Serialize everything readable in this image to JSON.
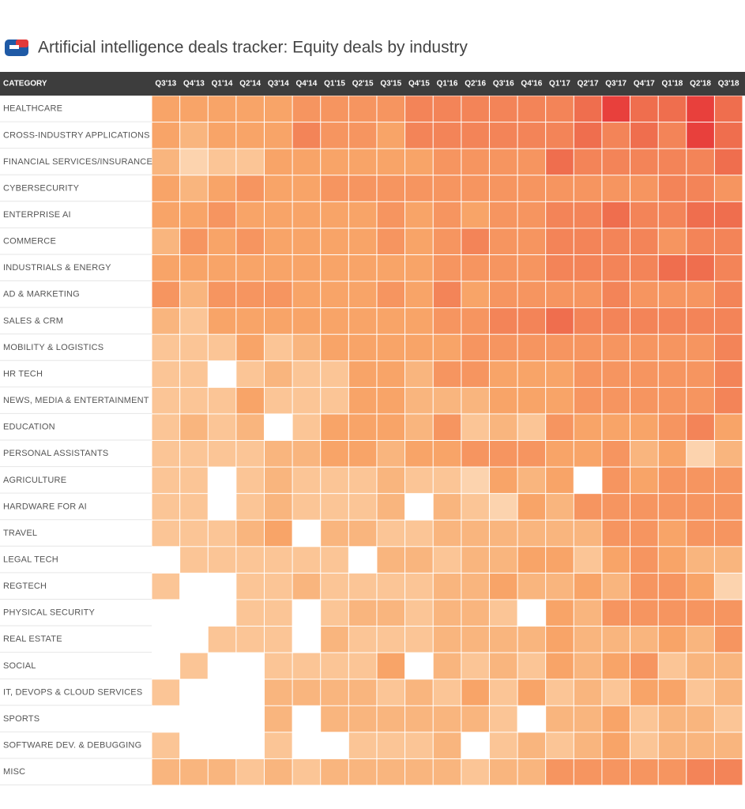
{
  "chart_data": {
    "type": "heatmap",
    "title": "Artificial intelligence deals tracker: Equity deals by industry",
    "row_header": "CATEGORY",
    "columns": [
      "Q3'13",
      "Q4'13",
      "Q1'14",
      "Q2'14",
      "Q3'14",
      "Q4'14",
      "Q1'15",
      "Q2'15",
      "Q3'15",
      "Q4'15",
      "Q1'16",
      "Q2'16",
      "Q3'16",
      "Q4'16",
      "Q1'17",
      "Q2'17",
      "Q3'17",
      "Q4'17",
      "Q1'18",
      "Q2'18",
      "Q3'18"
    ],
    "categories": [
      "HEALTHCARE",
      "CROSS-INDUSTRY APPLICATIONS",
      "FINANCIAL SERVICES/INSURANCE",
      "CYBERSECURITY",
      "ENTERPRISE AI",
      "COMMERCE",
      "INDUSTRIALS & ENERGY",
      "AD & MARKETING",
      "SALES & CRM",
      "MOBILITY & LOGISTICS",
      "HR TECH",
      "NEWS, MEDIA & ENTERTAINMENT",
      "EDUCATION",
      "PERSONAL ASSISTANTS",
      "AGRICULTURE",
      "HARDWARE FOR AI",
      "TRAVEL",
      "LEGAL TECH",
      "REGTECH",
      "PHYSICAL SECURITY",
      "REAL ESTATE",
      "SOCIAL",
      "IT, DEVOPS & CLOUD SERVICES",
      "SPORTS",
      "SOFTWARE DEV. & DEBUGGING",
      "MISC"
    ],
    "colors": [
      [
        "#f8a468",
        "#f8a468",
        "#f8a468",
        "#f8a468",
        "#f8a468",
        "#f69560",
        "#f69560",
        "#f69560",
        "#f69560",
        "#f38458",
        "#f38458",
        "#f38458",
        "#f38458",
        "#f38458",
        "#f38458",
        "#ef6e4e",
        "#e8403c",
        "#ef6e4e",
        "#ef6e4e",
        "#e8403c",
        "#ef6e4e"
      ],
      [
        "#f8a468",
        "#f9b57e",
        "#f8a468",
        "#f8a468",
        "#f8a468",
        "#f38458",
        "#f69560",
        "#f69560",
        "#f8a468",
        "#f38458",
        "#f38458",
        "#f38458",
        "#f38458",
        "#f38458",
        "#f38458",
        "#ef6e4e",
        "#f38458",
        "#ef6e4e",
        "#f38458",
        "#e8403c",
        "#ef6e4e"
      ],
      [
        "#f9b57e",
        "#fcd3ae",
        "#fbc596",
        "#fbc596",
        "#f8a468",
        "#f8a468",
        "#f8a468",
        "#f8a468",
        "#f8a468",
        "#f8a468",
        "#f69560",
        "#f69560",
        "#f69560",
        "#f69560",
        "#ef6e4e",
        "#f38458",
        "#f38458",
        "#f38458",
        "#f38458",
        "#f38458",
        "#ef6e4e"
      ],
      [
        "#f8a468",
        "#f9b57e",
        "#f8a468",
        "#f69560",
        "#f8a468",
        "#f8a468",
        "#f69560",
        "#f69560",
        "#f69560",
        "#f69560",
        "#f69560",
        "#f69560",
        "#f69560",
        "#f69560",
        "#f69560",
        "#f69560",
        "#f69560",
        "#f69560",
        "#f38458",
        "#f38458",
        "#f69560"
      ],
      [
        "#f8a468",
        "#f8a468",
        "#f69560",
        "#f8a468",
        "#f8a468",
        "#f8a468",
        "#f8a468",
        "#f8a468",
        "#f69560",
        "#f8a468",
        "#f69560",
        "#f8a468",
        "#f69560",
        "#f69560",
        "#f38458",
        "#f38458",
        "#ef6e4e",
        "#f38458",
        "#f38458",
        "#ef6e4e",
        "#ef6e4e"
      ],
      [
        "#f9b57e",
        "#f69560",
        "#f8a468",
        "#f69560",
        "#f8a468",
        "#f8a468",
        "#f8a468",
        "#f8a468",
        "#f69560",
        "#f8a468",
        "#f69560",
        "#f38458",
        "#f69560",
        "#f69560",
        "#f38458",
        "#f38458",
        "#f38458",
        "#f38458",
        "#f69560",
        "#f38458",
        "#f38458"
      ],
      [
        "#f8a468",
        "#f8a468",
        "#f8a468",
        "#f8a468",
        "#f8a468",
        "#f8a468",
        "#f8a468",
        "#f8a468",
        "#f8a468",
        "#f8a468",
        "#f69560",
        "#f69560",
        "#f69560",
        "#f69560",
        "#f38458",
        "#f38458",
        "#f38458",
        "#f38458",
        "#ef6e4e",
        "#ef6e4e",
        "#f38458"
      ],
      [
        "#f69560",
        "#f9b57e",
        "#f69560",
        "#f69560",
        "#f69560",
        "#f8a468",
        "#f8a468",
        "#f8a468",
        "#f69560",
        "#f8a468",
        "#f38458",
        "#f8a468",
        "#f69560",
        "#f69560",
        "#f69560",
        "#f69560",
        "#f38458",
        "#f69560",
        "#f69560",
        "#f69560",
        "#f38458"
      ],
      [
        "#f9b57e",
        "#fbc596",
        "#f8a468",
        "#f8a468",
        "#f8a468",
        "#f8a468",
        "#f8a468",
        "#f8a468",
        "#f8a468",
        "#f8a468",
        "#f69560",
        "#f69560",
        "#f38458",
        "#f38458",
        "#ef6e4e",
        "#f38458",
        "#f38458",
        "#f38458",
        "#f38458",
        "#f38458",
        "#f38458"
      ],
      [
        "#fbc596",
        "#fbc596",
        "#fbc596",
        "#f8a468",
        "#fbc596",
        "#f9b57e",
        "#f8a468",
        "#f8a468",
        "#f8a468",
        "#f8a468",
        "#f8a468",
        "#f69560",
        "#f69560",
        "#f69560",
        "#f69560",
        "#f69560",
        "#f69560",
        "#f69560",
        "#f69560",
        "#f69560",
        "#f38458"
      ],
      [
        "#fbc596",
        "#fbc596",
        null,
        "#fbc596",
        "#f9b57e",
        "#fbc596",
        "#fbc596",
        "#f8a468",
        "#f8a468",
        "#f9b57e",
        "#f69560",
        "#f69560",
        "#f8a468",
        "#f8a468",
        "#f8a468",
        "#f69560",
        "#f69560",
        "#f69560",
        "#f69560",
        "#f69560",
        "#f38458"
      ],
      [
        "#fbc596",
        "#fbc596",
        "#fbc596",
        "#f8a468",
        "#fbc596",
        "#fbc596",
        "#fbc596",
        "#f8a468",
        "#f8a468",
        "#f9b57e",
        "#f9b57e",
        "#f9b57e",
        "#f8a468",
        "#f8a468",
        "#f8a468",
        "#f69560",
        "#f69560",
        "#f69560",
        "#f69560",
        "#f69560",
        "#f38458"
      ],
      [
        "#fbc596",
        "#f9b57e",
        "#fbc596",
        "#f9b57e",
        null,
        "#fbc596",
        "#f8a468",
        "#f8a468",
        "#f8a468",
        "#f9b57e",
        "#f69560",
        "#fbc596",
        "#f9b57e",
        "#fbc596",
        "#f69560",
        "#f8a468",
        "#f8a468",
        "#f8a468",
        "#f69560",
        "#f38458",
        "#f8a468"
      ],
      [
        "#fbc596",
        "#fbc596",
        "#fbc596",
        "#fbc596",
        "#f9b57e",
        "#f9b57e",
        "#f8a468",
        "#f8a468",
        "#f9b57e",
        "#f8a468",
        "#f8a468",
        "#f69560",
        "#f69560",
        "#f69560",
        "#f8a468",
        "#f8a468",
        "#f69560",
        "#f9b57e",
        "#f8a468",
        "#fcd3ae",
        "#f9b57e"
      ],
      [
        "#fbc596",
        "#fbc596",
        null,
        "#fbc596",
        "#f9b57e",
        "#fbc596",
        "#fbc596",
        "#fbc596",
        "#f9b57e",
        "#fbc596",
        "#fbc596",
        "#fcd3ae",
        "#f8a468",
        "#f9b57e",
        "#f8a468",
        null,
        "#f69560",
        "#f8a468",
        "#f69560",
        "#f69560",
        "#f69560"
      ],
      [
        "#fbc596",
        "#fbc596",
        null,
        "#fbc596",
        "#f9b57e",
        "#fbc596",
        "#fbc596",
        "#fbc596",
        "#f9b57e",
        null,
        "#f9b57e",
        "#fbc596",
        "#fcd3ae",
        "#f8a468",
        "#f9b57e",
        "#f69560",
        "#f69560",
        "#f69560",
        "#f69560",
        "#f69560",
        "#f69560"
      ],
      [
        "#fbc596",
        "#fbc596",
        "#fbc596",
        "#f9b57e",
        "#f8a468",
        null,
        "#f9b57e",
        "#f9b57e",
        "#fbc596",
        "#fbc596",
        "#f9b57e",
        "#f9b57e",
        "#f9b57e",
        "#f9b57e",
        "#f9b57e",
        "#f9b57e",
        "#f69560",
        "#f69560",
        "#f8a468",
        "#f69560",
        "#f69560"
      ],
      [
        null,
        "#fbc596",
        "#fbc596",
        "#fbc596",
        "#fbc596",
        "#fbc596",
        "#fbc596",
        null,
        "#f9b57e",
        "#f9b57e",
        "#fbc596",
        "#f9b57e",
        "#f9b57e",
        "#f8a468",
        "#f8a468",
        "#fbc596",
        "#f8a468",
        "#f69560",
        "#f8a468",
        "#f9b57e",
        "#f9b57e"
      ],
      [
        "#fbc596",
        null,
        null,
        "#fbc596",
        "#fbc596",
        "#f9b57e",
        "#fbc596",
        "#fbc596",
        "#fbc596",
        "#fbc596",
        "#f9b57e",
        "#f9b57e",
        "#f8a468",
        "#f9b57e",
        "#f9b57e",
        "#f8a468",
        "#f9b57e",
        "#f69560",
        "#f69560",
        "#f8a468",
        "#fcd3ae"
      ],
      [
        null,
        null,
        null,
        "#fbc596",
        "#fbc596",
        null,
        "#fbc596",
        "#f9b57e",
        "#f9b57e",
        "#fbc596",
        "#f9b57e",
        "#f9b57e",
        "#fbc596",
        null,
        "#f8a468",
        "#f9b57e",
        "#f69560",
        "#f69560",
        "#f69560",
        "#f69560",
        "#f69560"
      ],
      [
        null,
        null,
        "#fbc596",
        "#fbc596",
        "#fbc596",
        null,
        "#f9b57e",
        "#fbc596",
        "#fbc596",
        "#fbc596",
        "#f9b57e",
        "#f9b57e",
        "#f9b57e",
        "#f9b57e",
        "#f8a468",
        "#f9b57e",
        "#f9b57e",
        "#f9b57e",
        "#f8a468",
        "#f9b57e",
        "#f69560"
      ],
      [
        null,
        "#fbc596",
        null,
        null,
        "#fbc596",
        "#fbc596",
        "#fbc596",
        "#fbc596",
        "#f8a468",
        null,
        "#f9b57e",
        "#fbc596",
        "#f9b57e",
        "#fbc596",
        "#f8a468",
        "#f9b57e",
        "#f8a468",
        "#f69560",
        "#fbc596",
        "#f9b57e",
        "#f9b57e"
      ],
      [
        "#fbc596",
        null,
        null,
        null,
        "#f9b57e",
        "#f9b57e",
        "#f9b57e",
        "#f9b57e",
        "#fbc596",
        "#f9b57e",
        "#fbc596",
        "#f8a468",
        "#fbc596",
        "#f8a468",
        "#fbc596",
        "#f9b57e",
        "#fbc596",
        "#f8a468",
        "#f8a468",
        "#fbc596",
        "#f9b57e"
      ],
      [
        null,
        null,
        null,
        null,
        "#f9b57e",
        null,
        "#f9b57e",
        "#f9b57e",
        "#f9b57e",
        "#f9b57e",
        "#f9b57e",
        "#f9b57e",
        "#fbc596",
        null,
        "#f9b57e",
        "#f9b57e",
        "#f8a468",
        "#fbc596",
        "#f9b57e",
        "#f9b57e",
        "#fbc596"
      ],
      [
        "#fbc596",
        null,
        null,
        null,
        "#fbc596",
        null,
        null,
        "#fbc596",
        "#fbc596",
        "#fbc596",
        "#f9b57e",
        null,
        "#fbc596",
        "#f9b57e",
        "#fbc596",
        "#f9b57e",
        "#f8a468",
        "#fbc596",
        "#f9b57e",
        "#f9b57e",
        "#f9b57e"
      ],
      [
        "#f9b57e",
        "#f9b57e",
        "#f9b57e",
        "#fbc596",
        "#f9b57e",
        "#fbc596",
        "#f9b57e",
        "#f9b57e",
        "#f9b57e",
        "#f9b57e",
        "#f9b57e",
        "#fbc596",
        "#f9b57e",
        "#f9b57e",
        "#f69560",
        "#f69560",
        "#f69560",
        "#f69560",
        "#f69560",
        "#f38458",
        "#f38458"
      ]
    ]
  }
}
